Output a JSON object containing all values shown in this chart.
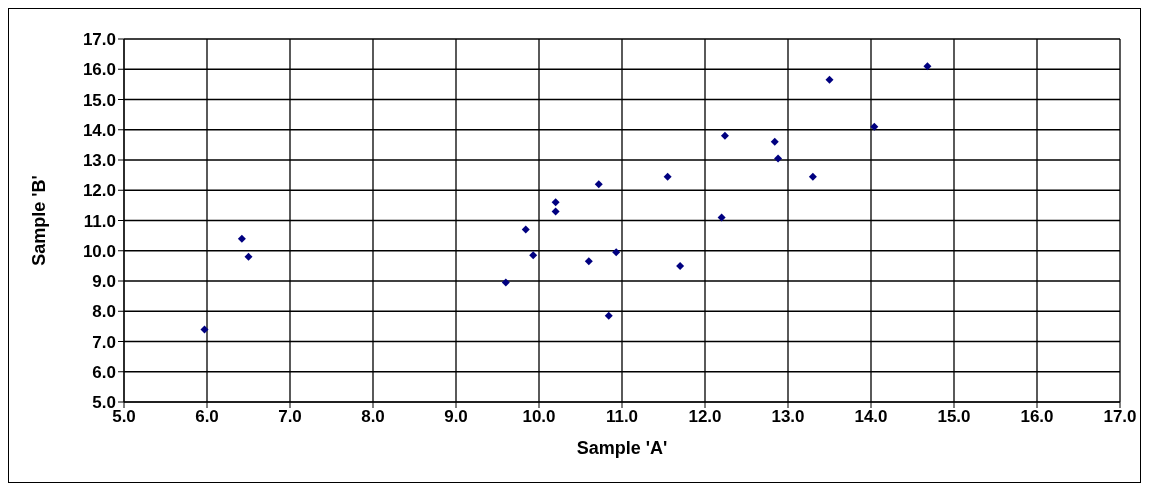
{
  "chart_data": {
    "type": "scatter",
    "xlabel": "Sample 'A'",
    "ylabel": "Sample 'B'",
    "xlim": [
      5,
      17
    ],
    "xticks": [
      {
        "value": 5,
        "label": "5.0"
      },
      {
        "value": 6,
        "label": "6.0"
      },
      {
        "value": 7,
        "label": "7.0"
      },
      {
        "value": 8,
        "label": "8.0"
      },
      {
        "value": 9,
        "label": "9.0"
      },
      {
        "value": 10,
        "label": "10.0"
      },
      {
        "value": 11,
        "label": "11.0"
      },
      {
        "value": 12,
        "label": "12.0"
      },
      {
        "value": 13,
        "label": "13.0"
      },
      {
        "value": 14,
        "label": "14.0"
      },
      {
        "value": 15,
        "label": "15.0"
      },
      {
        "value": 16,
        "label": "16.0"
      },
      {
        "value": 17,
        "label": "17.0"
      }
    ],
    "ylim": [
      5,
      17
    ],
    "yticks": [
      {
        "value": 5,
        "label": "5.0"
      },
      {
        "value": 6,
        "label": "6.0"
      },
      {
        "value": 7,
        "label": "7.0"
      },
      {
        "value": 8,
        "label": "8.0"
      },
      {
        "value": 9,
        "label": "9.0"
      },
      {
        "value": 10,
        "label": "10.0"
      },
      {
        "value": 11,
        "label": "11.0"
      },
      {
        "value": 12,
        "label": "12.0"
      },
      {
        "value": 13,
        "label": "13.0"
      },
      {
        "value": 14,
        "label": "14.0"
      },
      {
        "value": 15,
        "label": "15.0"
      },
      {
        "value": 16,
        "label": "16.0"
      },
      {
        "value": 17,
        "label": "17.0"
      }
    ],
    "grid": true,
    "marker": "diamond",
    "legend": false,
    "series": [
      {
        "color": "#000080",
        "x": [
          5.97,
          6.42,
          6.5,
          9.6,
          9.84,
          9.93,
          10.2,
          10.2,
          10.6,
          10.72,
          10.84,
          10.93,
          11.55,
          11.7,
          12.2,
          12.24,
          12.84,
          12.88,
          13.3,
          13.5,
          14.04,
          14.68
        ],
        "values": [
          7.4,
          10.4,
          9.8,
          8.95,
          10.7,
          9.85,
          11.6,
          11.3,
          9.65,
          12.2,
          7.85,
          9.95,
          12.45,
          9.5,
          11.1,
          13.8,
          13.6,
          13.05,
          12.45,
          15.65,
          14.1,
          16.1
        ]
      }
    ]
  }
}
